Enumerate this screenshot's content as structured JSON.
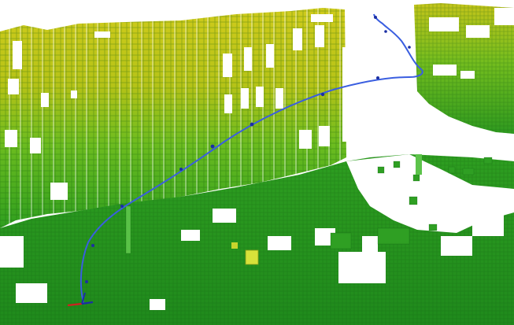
{
  "scene": {
    "kind": "voxel-occupancy-map-with-trajectory",
    "background": "#ffffff",
    "colormap": "height",
    "colors": {
      "high": "#c9c61a",
      "mid_high": "#a9c214",
      "mid": "#58b81c",
      "low": "#2e9e20",
      "ground": "#1f8a1c",
      "voxel_edge": "#0f5a0f",
      "trajectory": "#3a5ee0",
      "trajectory_marker": "#1b2fa3",
      "start_frame_x_axis": "#d02020",
      "small_yellow_object": "#d7e23a"
    },
    "objects": [
      {
        "id": "left-building-facade",
        "description_icon": "voxel-wall"
      },
      {
        "id": "right-building-facade",
        "description_icon": "voxel-wall"
      },
      {
        "id": "ground-plane",
        "description_icon": "voxel-ground"
      },
      {
        "id": "robot-trajectory",
        "description_icon": "path-line"
      },
      {
        "id": "start-pose-axes",
        "description_icon": "coordinate-frame"
      },
      {
        "id": "pole",
        "description_icon": "voxel-column"
      }
    ]
  }
}
